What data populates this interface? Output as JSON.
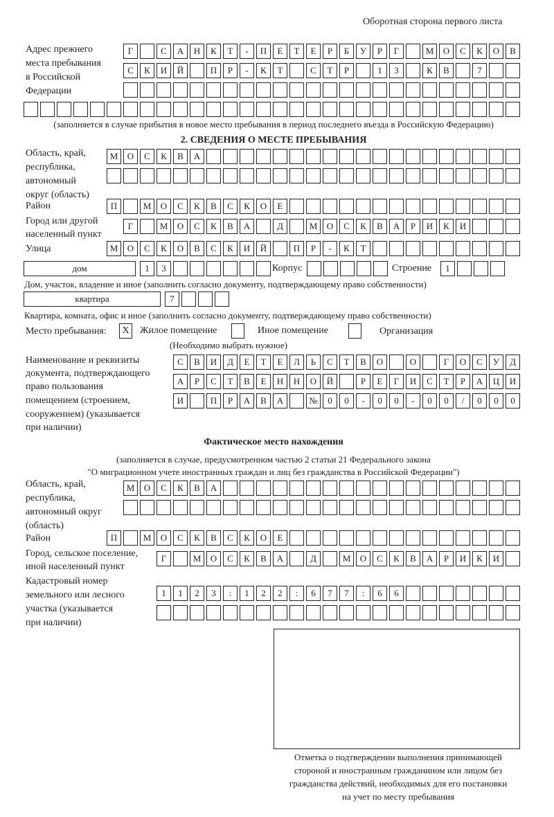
{
  "header": {
    "side_note": "Оборотная сторона первого листа"
  },
  "previous_address": {
    "label": [
      "Адрес прежнего",
      "места пребывания",
      "в Российской",
      "Федерации"
    ],
    "rows": [
      "Г САНКТ-ПЕТЕРБУРГ МОСКОВ",
      "СКИЙ ПР-КТ СТР 13 КВ 7",
      "",
      ""
    ],
    "caption": "(заполняется в случае прибытия в новое место пребывания в период последнего въезда в Российскую Федерацию)"
  },
  "section2": {
    "title": "2. СВЕДЕНИЯ О МЕСТЕ ПРЕБЫВАНИЯ",
    "region_label": [
      "Область, край,",
      "республика,",
      "автономный",
      "округ (область)"
    ],
    "region_rows": [
      "МОСКВА",
      ""
    ],
    "district_label": "Район",
    "district": "П МОСКВСКОЕ",
    "city_label": [
      "Город или другой",
      "населенный пункт"
    ],
    "city": "Г МОСКВА Д МОСКВАРИКИ",
    "street_label": "Улица",
    "street": "МОСКОВСКИЙ ПР-КТ",
    "house_type": "дом",
    "house": "13",
    "korpus_label": "Корпус",
    "korpus": "",
    "building_label": "Строение",
    "building": "1",
    "house_caption": "Дом, участок, владение и иное (заполнить согласно документу, подтверждающему право собственности)",
    "apt_type": "квартира",
    "apt": "7",
    "apt_caption": "Квартира, комната, офис и иное (заполнить согласно документу, подтверждающему право собственности)",
    "place_label": "Место пребывания:",
    "options": [
      {
        "label": "Жилое помещение",
        "mark": "X",
        "checked": true
      },
      {
        "label": "Иное помещение",
        "mark": "",
        "checked": false
      },
      {
        "label": "Организация",
        "mark": "",
        "checked": false
      }
    ],
    "choose_note": "(Необходимо выбрать нужное)",
    "doc_label": [
      "Наименование и реквизиты",
      "документа, подтверждающего",
      "право пользования",
      "помещением (строением,",
      "сооружением) (указывается",
      "при наличии)"
    ],
    "doc_rows": [
      "СВИДЕТЕЛЬСТВО О ГОСУД",
      "АРСТВЕННОЙ РЕГИСТРАЦИ",
      "И ПРАВА №00-00-00/000"
    ]
  },
  "actual": {
    "title": "Фактическое место нахождения",
    "subtitle": [
      "(заполняется в случае, предусмотренном частью 2 статьи 21 Федерального закона",
      "\"О миграционном учете иностранных граждан и лиц без гражданства в Российской Федерации\")"
    ],
    "region_label": [
      "Область, край,",
      "республика,",
      "автономный округ",
      "(область)"
    ],
    "region_rows": [
      "МОСКВА",
      ""
    ],
    "district_label": "Район",
    "district": "П МОСКВСКОЕ",
    "city_label": [
      "Город, сельское поселение,",
      "иной населенный пункт"
    ],
    "city": "Г МОСКВА Д МОСКВАРИКИ",
    "cadastre_label": [
      "Кадастровый номер",
      "земельного или лесного",
      "участка (указывается",
      "при наличии)"
    ],
    "cadastre_rows": [
      "1123:122:677:66",
      ""
    ]
  },
  "stamp": {
    "caption": [
      "Отметка о подтверждении выполнения принимающей",
      "стороной и иностранным гражданином или лицом без",
      "гражданства действий, необходимых для его постановки",
      "на учет по месту пребывания"
    ]
  }
}
